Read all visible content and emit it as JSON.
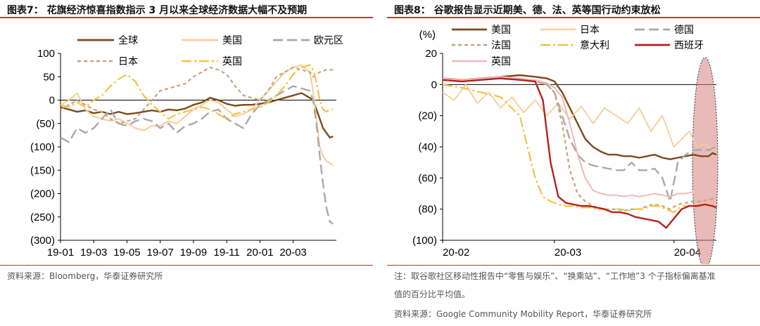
{
  "left": {
    "title": "图表7： 花旗经济惊喜指数指示 3 月以来全球经济数据大幅不及预期",
    "source": "资料来源：Bloomberg，华泰证券研究所"
  },
  "right": {
    "title": "图表8： 谷歌报告显示近期美、德、法、英等国行动约束放松",
    "note_line1": "注：取谷歌社区移动性报告中“零售与娱乐”、“换乘站”、“工作地”3 个子指标偏离基准",
    "note_line2": "值的百分比平均值。",
    "source": "资料来源：Google Community Mobility Report，华泰证券研究所"
  },
  "chart_data": [
    {
      "type": "line",
      "title": "",
      "xlabel": "",
      "ylabel": "",
      "ylim": [
        -300,
        100
      ],
      "y_ticks": [
        100,
        50,
        0,
        -50,
        -100,
        -150,
        -200,
        -250,
        -300
      ],
      "y_tick_labels": [
        "100",
        "50",
        "0",
        "(50)",
        "(100)",
        "(150)",
        "(200)",
        "(250)",
        "(300)"
      ],
      "x_ticks": [
        "19-01",
        "19-03",
        "19-05",
        "19-07",
        "19-09",
        "19-11",
        "20-01",
        "20-03"
      ],
      "x_range": [
        0,
        16.6
      ],
      "legend_position": "top",
      "series": [
        {
          "name": "全球",
          "color": "#7b4a1e",
          "dash": "solid",
          "width": 2.4,
          "x": [
            0,
            0.5,
            1,
            1.5,
            2,
            2.5,
            3,
            3.5,
            4,
            4.5,
            5,
            5.5,
            6,
            6.5,
            7,
            7.5,
            8,
            8.5,
            9,
            9.5,
            10,
            10.5,
            11,
            11.5,
            12,
            12.5,
            13,
            13.5,
            14,
            14.5,
            15,
            15.2,
            15.4,
            15.6,
            15.8,
            16,
            16.2,
            16.4
          ],
          "y": [
            -15,
            -20,
            -25,
            -22,
            -28,
            -25,
            -30,
            -25,
            -30,
            -28,
            -25,
            -22,
            -25,
            -20,
            -22,
            -18,
            -10,
            -5,
            5,
            0,
            -8,
            -12,
            -10,
            -10,
            -8,
            -5,
            0,
            5,
            10,
            15,
            5,
            0,
            -20,
            -40,
            -60,
            -70,
            -80,
            -78
          ]
        },
        {
          "name": "美国",
          "color": "#f7cc97",
          "dash": "solid",
          "width": 2,
          "x": [
            0,
            0.5,
            1,
            1.5,
            2,
            2.5,
            3,
            3.5,
            4,
            4.5,
            5,
            5.5,
            6,
            6.5,
            7,
            7.5,
            8,
            8.5,
            9,
            9.5,
            10,
            10.5,
            11,
            11.5,
            12,
            12.5,
            13,
            13.5,
            14,
            14.5,
            15,
            15.2,
            15.4,
            15.6,
            15.8,
            16,
            16.2,
            16.4
          ],
          "y": [
            -10,
            0,
            15,
            -20,
            -35,
            -40,
            -45,
            -40,
            -50,
            -60,
            -65,
            -55,
            -55,
            -45,
            -50,
            -35,
            -20,
            -10,
            0,
            -5,
            -20,
            -35,
            -30,
            -20,
            0,
            20,
            40,
            60,
            70,
            75,
            60,
            20,
            -40,
            -100,
            -120,
            -130,
            -135,
            -140
          ]
        },
        {
          "name": "欧元区",
          "color": "#a9a9a9",
          "dash": "14,6",
          "width": 2.4,
          "x": [
            0,
            0.5,
            1,
            1.5,
            2,
            2.5,
            3,
            3.5,
            4,
            4.5,
            5,
            5.5,
            6,
            6.5,
            7,
            7.5,
            8,
            8.5,
            9,
            9.5,
            10,
            10.5,
            11,
            11.5,
            12,
            12.5,
            13,
            13.5,
            14,
            14.5,
            15,
            15.2,
            15.4,
            15.6,
            15.8,
            16,
            16.2,
            16.4
          ],
          "y": [
            -80,
            -90,
            -60,
            -70,
            -60,
            -40,
            -20,
            -50,
            -55,
            -45,
            -40,
            -45,
            -60,
            -50,
            -70,
            -55,
            -50,
            -40,
            -25,
            -20,
            -40,
            -50,
            -60,
            -30,
            -10,
            0,
            10,
            20,
            30,
            25,
            20,
            0,
            -50,
            -120,
            -180,
            -230,
            -260,
            -265
          ]
        },
        {
          "name": "日本",
          "color": "#c9a27a",
          "dash": "5,4",
          "width": 2.2,
          "x": [
            0,
            0.5,
            1,
            1.5,
            2,
            2.5,
            3,
            3.5,
            4,
            4.5,
            5,
            5.5,
            6,
            6.5,
            7,
            7.5,
            8,
            8.5,
            9,
            9.5,
            10,
            10.5,
            11,
            11.5,
            12,
            12.5,
            13,
            13.5,
            14,
            14.5,
            15,
            15.2,
            15.4,
            15.6,
            15.8,
            16,
            16.2,
            16.4
          ],
          "y": [
            -20,
            -10,
            0,
            -10,
            -20,
            -25,
            -40,
            -50,
            -45,
            -40,
            -20,
            0,
            20,
            25,
            30,
            35,
            50,
            60,
            70,
            65,
            55,
            30,
            10,
            5,
            0,
            20,
            50,
            60,
            70,
            65,
            60,
            50,
            55,
            60,
            62,
            65,
            65,
            65
          ]
        },
        {
          "name": "英国",
          "color": "#f5c242",
          "dash": "14,4,3,4",
          "width": 2.2,
          "x": [
            0,
            0.5,
            1,
            1.5,
            2,
            2.5,
            3,
            3.5,
            4,
            4.5,
            5,
            5.5,
            6,
            6.5,
            7,
            7.5,
            8,
            8.5,
            9,
            9.5,
            10,
            10.5,
            11,
            11.5,
            12,
            12.5,
            13,
            13.5,
            14,
            14.5,
            15,
            15.2,
            15.4,
            15.6,
            15.8,
            16,
            16.2,
            16.4
          ],
          "y": [
            -10,
            -15,
            -5,
            -15,
            0,
            10,
            30,
            45,
            55,
            40,
            10,
            -10,
            -25,
            -40,
            -30,
            -25,
            -20,
            -15,
            -20,
            -30,
            -40,
            -30,
            -25,
            -20,
            -15,
            -5,
            10,
            30,
            55,
            70,
            75,
            65,
            40,
            0,
            -20,
            -25,
            -20,
            -20
          ]
        }
      ]
    },
    {
      "type": "line",
      "title": "",
      "ylabel": "(%)",
      "xlabel": "",
      "ylim": [
        -100,
        20
      ],
      "y_ticks": [
        20,
        0,
        -20,
        -40,
        -60,
        -80,
        -100
      ],
      "y_tick_labels": [
        "20",
        "0",
        "(20)",
        "(40)",
        "(60)",
        "(80)",
        "(100)"
      ],
      "x_ticks": [
        "20-02",
        "20-03",
        "20-04"
      ],
      "x_tick_days": [
        0,
        29,
        60
      ],
      "x_range": [
        0,
        71
      ],
      "legend_position": "top",
      "annotation": "red shaded ellipse around the latest data points",
      "series": [
        {
          "name": "美国",
          "color": "#7b4a1e",
          "dash": "solid",
          "width": 2.4,
          "x": [
            0,
            5,
            10,
            15,
            20,
            24,
            27,
            29,
            31,
            33,
            35,
            37,
            39,
            41,
            43,
            45,
            47,
            49,
            51,
            53,
            55,
            57,
            59,
            61,
            63,
            65,
            67,
            69,
            70,
            71
          ],
          "y": [
            4,
            3,
            4,
            5,
            6,
            5,
            4,
            2,
            -5,
            -15,
            -25,
            -35,
            -40,
            -43,
            -45,
            -45,
            -46,
            -46,
            -47,
            -46,
            -45,
            -47,
            -48,
            -47,
            -46,
            -45,
            -46,
            -46,
            -44,
            -45
          ]
        },
        {
          "name": "日本",
          "color": "#f7cc97",
          "dash": "solid",
          "width": 1.8,
          "x": [
            0,
            3,
            6,
            9,
            12,
            15,
            18,
            21,
            24,
            27,
            30,
            33,
            36,
            39,
            42,
            45,
            48,
            51,
            54,
            57,
            60,
            62,
            64,
            66,
            68,
            70,
            71
          ],
          "y": [
            -5,
            -10,
            0,
            -12,
            -5,
            -15,
            -8,
            -18,
            -10,
            -20,
            -12,
            -22,
            -14,
            -25,
            -15,
            -20,
            -25,
            -15,
            -30,
            -20,
            -40,
            -35,
            -30,
            -40,
            -38,
            -42,
            -40
          ]
        },
        {
          "name": "德国",
          "color": "#a9a9a9",
          "dash": "14,6",
          "width": 2.4,
          "x": [
            0,
            5,
            10,
            15,
            20,
            24,
            27,
            29,
            31,
            33,
            35,
            37,
            39,
            41,
            43,
            45,
            47,
            49,
            51,
            53,
            55,
            57,
            59,
            61,
            63,
            65,
            67,
            69,
            71
          ],
          "y": [
            3,
            2,
            3,
            4,
            3,
            2,
            0,
            -5,
            -20,
            -35,
            -45,
            -50,
            -52,
            -53,
            -54,
            -55,
            -55,
            -50,
            -55,
            -55,
            -54,
            -60,
            -75,
            -50,
            -45,
            -42,
            -42,
            -42,
            -40
          ]
        },
        {
          "name": "法国",
          "color": "#c9a27a",
          "dash": "5,4",
          "width": 2.2,
          "x": [
            0,
            5,
            10,
            15,
            20,
            24,
            27,
            29,
            31,
            33,
            35,
            37,
            39,
            41,
            43,
            45,
            47,
            49,
            51,
            53,
            55,
            57,
            59,
            61,
            63,
            65,
            67,
            69,
            71
          ],
          "y": [
            3,
            2,
            3,
            4,
            3,
            2,
            0,
            -5,
            -25,
            -55,
            -70,
            -75,
            -78,
            -80,
            -80,
            -80,
            -81,
            -80,
            -80,
            -78,
            -77,
            -78,
            -80,
            -77,
            -76,
            -75,
            -75,
            -74,
            -73
          ]
        },
        {
          "name": "意大利",
          "color": "#f5c242",
          "dash": "14,4,3,4",
          "width": 2.2,
          "x": [
            0,
            5,
            10,
            15,
            20,
            22,
            24,
            26,
            28,
            30,
            32,
            34,
            36,
            38,
            40,
            42,
            44,
            46,
            48,
            50,
            52,
            54,
            56,
            58,
            60,
            62,
            64,
            66,
            68,
            70,
            71
          ],
          "y": [
            0,
            -2,
            -5,
            -8,
            -20,
            -40,
            -60,
            -72,
            -75,
            -77,
            -78,
            -78,
            -79,
            -79,
            -80,
            -80,
            -80,
            -80,
            -81,
            -80,
            -80,
            -78,
            -78,
            -80,
            -82,
            -78,
            -78,
            -77,
            -77,
            -76,
            -76
          ]
        },
        {
          "name": "西班牙",
          "color": "#b22222",
          "dash": "solid",
          "width": 2.4,
          "x": [
            0,
            5,
            10,
            15,
            20,
            24,
            26,
            28,
            30,
            32,
            34,
            36,
            38,
            40,
            42,
            44,
            46,
            48,
            50,
            52,
            54,
            56,
            58,
            60,
            62,
            64,
            66,
            68,
            70,
            71
          ],
          "y": [
            3,
            2,
            3,
            4,
            3,
            2,
            -10,
            -50,
            -72,
            -76,
            -77,
            -78,
            -78,
            -79,
            -80,
            -82,
            -82,
            -83,
            -85,
            -86,
            -87,
            -88,
            -92,
            -86,
            -80,
            -78,
            -78,
            -77,
            -78,
            -79
          ]
        },
        {
          "name": "英国",
          "color": "#f4b7b7",
          "dash": "solid",
          "width": 2,
          "x": [
            0,
            5,
            10,
            15,
            20,
            24,
            27,
            29,
            31,
            33,
            35,
            37,
            39,
            41,
            43,
            45,
            47,
            49,
            51,
            53,
            55,
            57,
            59,
            61,
            63,
            65,
            67,
            69,
            71
          ],
          "y": [
            4,
            3,
            4,
            5,
            4,
            3,
            1,
            -2,
            -8,
            -25,
            -45,
            -60,
            -68,
            -70,
            -71,
            -71,
            -72,
            -71,
            -72,
            -71,
            -70,
            -71,
            -72,
            -70,
            -70,
            -69,
            -69,
            -68,
            -62
          ]
        }
      ]
    }
  ]
}
